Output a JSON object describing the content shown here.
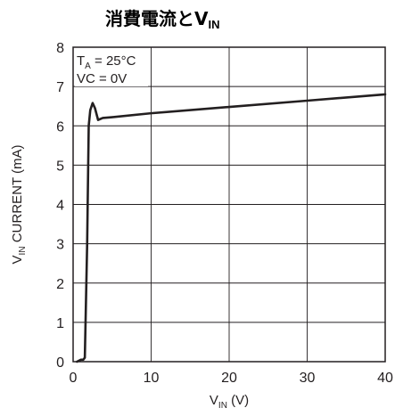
{
  "chart_data": {
    "type": "line",
    "title": {
      "main": "消費電流とV",
      "sub": "IN"
    },
    "xlabel": {
      "main": "V",
      "sub": "IN",
      "rest": " (V)"
    },
    "ylabel": {
      "main": "V",
      "sub": "IN",
      "rest": " CURRENT (mA)"
    },
    "xlim": [
      0,
      40
    ],
    "ylim": [
      0,
      8
    ],
    "x_ticks": [
      0,
      10,
      20,
      30,
      40
    ],
    "y_ticks": [
      0,
      1,
      2,
      3,
      4,
      5,
      6,
      7,
      8
    ],
    "grid": true,
    "annotations": [
      {
        "main": "T",
        "sub": "A",
        "rest": " = 25°C"
      },
      {
        "main": "VC = 0V",
        "sub": "",
        "rest": ""
      }
    ],
    "series": [
      {
        "color": "#231f20",
        "points": [
          [
            0.5,
            0.0
          ],
          [
            1.0,
            0.05
          ],
          [
            1.3,
            0.05
          ],
          [
            1.5,
            0.1
          ],
          [
            1.8,
            3.0
          ],
          [
            2.0,
            6.0
          ],
          [
            2.2,
            6.4
          ],
          [
            2.5,
            6.58
          ],
          [
            2.8,
            6.45
          ],
          [
            3.2,
            6.15
          ],
          [
            3.8,
            6.2
          ],
          [
            5,
            6.22
          ],
          [
            10,
            6.32
          ],
          [
            20,
            6.48
          ],
          [
            30,
            6.64
          ],
          [
            40,
            6.8
          ]
        ]
      }
    ]
  }
}
